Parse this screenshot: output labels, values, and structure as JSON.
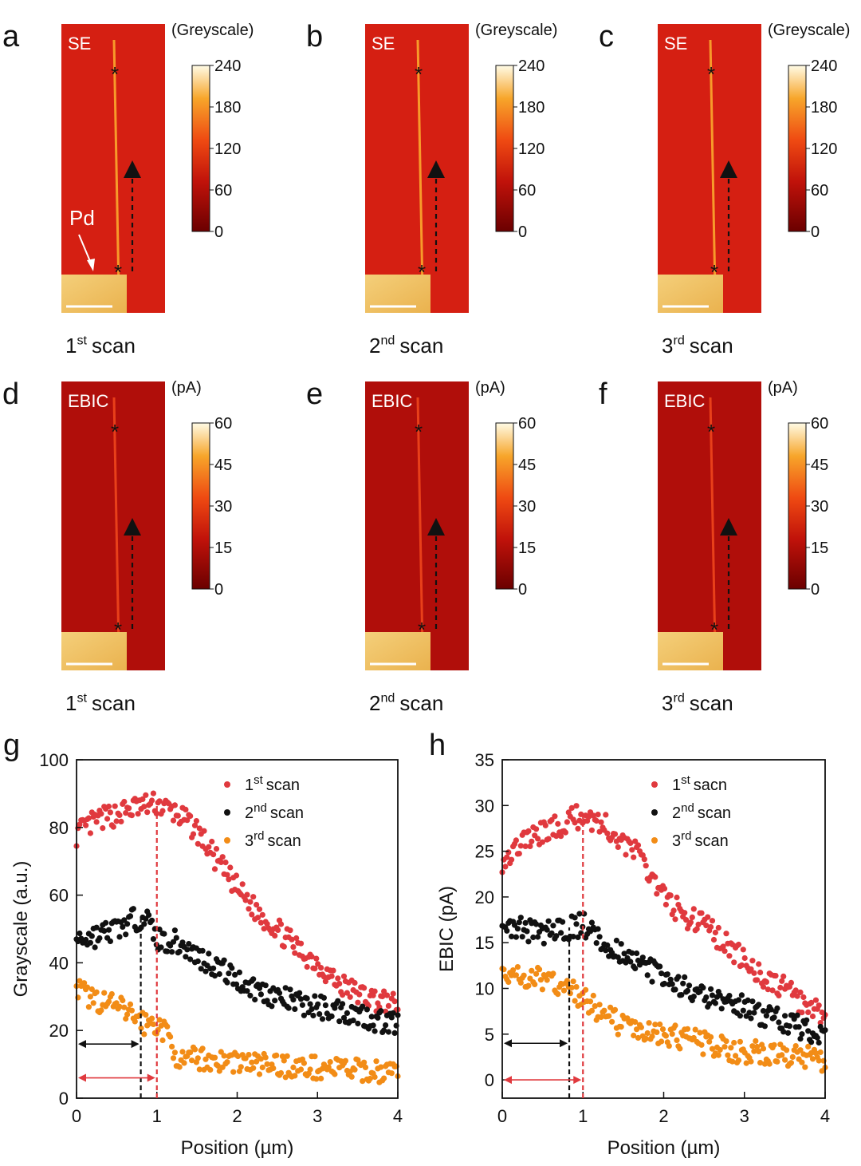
{
  "figure": {
    "panels_top": [
      {
        "letter": "a",
        "label": "SE",
        "scan_num": "1",
        "scan_sup": "st",
        "scan_word": "scan",
        "cbar_unit": "(Greyscale)",
        "cbar_ticks": [
          "240",
          "180",
          "120",
          "60",
          "0"
        ],
        "pd_label": "Pd"
      },
      {
        "letter": "b",
        "label": "SE",
        "scan_num": "2",
        "scan_sup": "nd",
        "scan_word": "scan",
        "cbar_unit": "(Greyscale)",
        "cbar_ticks": [
          "240",
          "180",
          "120",
          "60",
          "0"
        ]
      },
      {
        "letter": "c",
        "label": "SE",
        "scan_num": "3",
        "scan_sup": "rd",
        "scan_word": "scan",
        "cbar_unit": "(Greyscale)",
        "cbar_ticks": [
          "240",
          "180",
          "120",
          "60",
          "0"
        ]
      }
    ],
    "panels_mid": [
      {
        "letter": "d",
        "label": "EBIC",
        "scan_num": "1",
        "scan_sup": "st",
        "scan_word": "scan",
        "cbar_unit": "(pA)",
        "cbar_ticks": [
          "60",
          "45",
          "30",
          "15",
          "0"
        ]
      },
      {
        "letter": "e",
        "label": "EBIC",
        "scan_num": "2",
        "scan_sup": "nd",
        "scan_word": "scan",
        "cbar_unit": "(pA)",
        "cbar_ticks": [
          "60",
          "45",
          "30",
          "15",
          "0"
        ]
      },
      {
        "letter": "f",
        "label": "EBIC",
        "scan_num": "3",
        "scan_sup": "rd",
        "scan_word": "scan",
        "cbar_unit": "(pA)",
        "cbar_ticks": [
          "60",
          "45",
          "30",
          "15",
          "0"
        ]
      }
    ],
    "colors": {
      "red": "#e0393e",
      "black": "#111111",
      "orange": "#f28c16",
      "map_bg": "#d51f12",
      "map_bg_dark": "#b00e0a",
      "pd": "#f0c060"
    }
  },
  "chart_data": [
    {
      "type": "scatter",
      "panel": "g",
      "xlabel": "Position (µm)",
      "ylabel": "Grayscale (a.u.)",
      "xlim": [
        0,
        4
      ],
      "ylim": [
        0,
        100
      ],
      "xticks": [
        "0",
        "1",
        "2",
        "3",
        "4"
      ],
      "yticks": [
        "0",
        "20",
        "40",
        "60",
        "80",
        "100"
      ],
      "legend": [
        {
          "num": "1",
          "sup": "st",
          "word": "scan",
          "color": "#e0393e"
        },
        {
          "num": "2",
          "sup": "nd",
          "word": "scan",
          "color": "#111111"
        },
        {
          "num": "3",
          "sup": "rd",
          "word": "scan",
          "color": "#f28c16"
        }
      ],
      "markers": [
        {
          "x": 0.8,
          "y_arrow": 16,
          "color": "#111111"
        },
        {
          "x": 1.0,
          "y_arrow": 6,
          "color": "#e0393e"
        }
      ],
      "series": [
        {
          "name": "1st scan",
          "color": "#e0393e",
          "x": [
            0,
            0.25,
            0.5,
            0.75,
            1.0,
            1.25,
            1.5,
            1.75,
            2.0,
            2.25,
            2.5,
            2.75,
            3.0,
            3.25,
            3.5,
            3.75,
            4.0
          ],
          "y": [
            78,
            82,
            84,
            86,
            87,
            84,
            79,
            70,
            62,
            55,
            50,
            44,
            40,
            34,
            31,
            29,
            27
          ]
        },
        {
          "name": "2nd scan",
          "color": "#111111",
          "x": [
            0,
            0.25,
            0.5,
            0.75,
            0.85,
            1.0,
            1.25,
            1.5,
            1.75,
            2.0,
            2.25,
            2.5,
            2.75,
            3.0,
            3.25,
            3.5,
            3.75,
            4.0
          ],
          "y": [
            47,
            48,
            50,
            53,
            54,
            47,
            46,
            42,
            39,
            35,
            32,
            30,
            28,
            27,
            26,
            25,
            23,
            22
          ]
        },
        {
          "name": "3rd scan",
          "color": "#f28c16",
          "x": [
            0,
            0.25,
            0.5,
            0.75,
            0.85,
            1.0,
            1.15,
            1.3,
            1.5,
            1.75,
            2.0,
            2.25,
            2.5,
            2.75,
            3.0,
            3.25,
            3.5,
            3.75,
            4.0
          ],
          "y": [
            32,
            29,
            27,
            24,
            22,
            22,
            18,
            10,
            12,
            11,
            11,
            10,
            10,
            9,
            9,
            9,
            8,
            8,
            8
          ]
        }
      ]
    },
    {
      "type": "scatter",
      "panel": "h",
      "xlabel": "Position (µm)",
      "ylabel": "EBIC (pA)",
      "xlim": [
        0,
        4
      ],
      "ylim": [
        -2,
        35
      ],
      "xticks": [
        "0",
        "1",
        "2",
        "3",
        "4"
      ],
      "yticks": [
        "0",
        "5",
        "10",
        "15",
        "20",
        "25",
        "30",
        "35"
      ],
      "legend": [
        {
          "num": "1",
          "sup": "st",
          "word": "sacn",
          "color": "#e0393e"
        },
        {
          "num": "2",
          "sup": "nd",
          "word": "scan",
          "color": "#111111"
        },
        {
          "num": "3",
          "sup": "rd",
          "word": "scan",
          "color": "#f28c16"
        }
      ],
      "markers": [
        {
          "x": 0.83,
          "y_arrow": 4,
          "color": "#111111"
        },
        {
          "x": 1.0,
          "y_arrow": 0,
          "color": "#e0393e"
        }
      ],
      "series": [
        {
          "name": "1st sacn",
          "color": "#e0393e",
          "x": [
            0,
            0.25,
            0.5,
            0.75,
            1.0,
            1.25,
            1.5,
            1.75,
            2.0,
            2.25,
            2.5,
            2.75,
            3.0,
            3.25,
            3.5,
            3.75,
            4.0
          ],
          "y": [
            24,
            26,
            27,
            28,
            29,
            28,
            26,
            24,
            20,
            18,
            17,
            15,
            13,
            11,
            10,
            8,
            7
          ]
        },
        {
          "name": "2nd scan",
          "color": "#111111",
          "x": [
            0,
            0.25,
            0.5,
            0.75,
            1.0,
            1.25,
            1.5,
            1.75,
            2.0,
            2.25,
            2.5,
            2.75,
            3.0,
            3.25,
            3.5,
            3.75,
            4.0
          ],
          "y": [
            17,
            16.5,
            16,
            16.5,
            17,
            15,
            14,
            12.5,
            11,
            10,
            9,
            8.5,
            8,
            7,
            6.5,
            5.5,
            5
          ]
        },
        {
          "name": "3rd scan",
          "color": "#f28c16",
          "x": [
            0,
            0.25,
            0.5,
            0.75,
            1.0,
            1.25,
            1.5,
            1.75,
            2.0,
            2.25,
            2.5,
            2.75,
            3.0,
            3.25,
            3.5,
            3.75,
            4.0
          ],
          "y": [
            12,
            11,
            11,
            10,
            9,
            7,
            6,
            5,
            5,
            4.5,
            4,
            3.5,
            3,
            3,
            2.5,
            2.5,
            2
          ]
        }
      ]
    }
  ]
}
